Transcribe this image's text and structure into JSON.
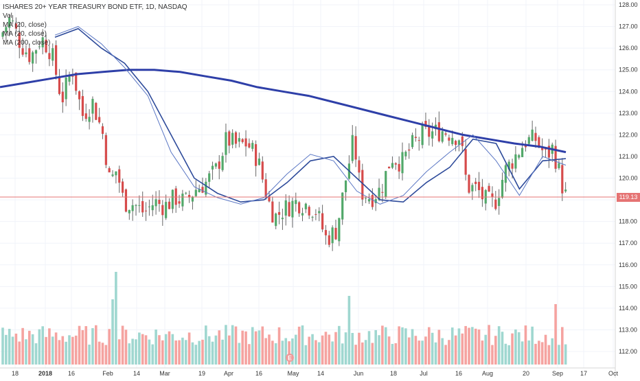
{
  "legend": {
    "symbol_line": "ISHARES 20+ YEAR TREASURY BOND ETF, 1D, NASDAQ",
    "volume_line": "Vol",
    "ma1_line": "MA (20, close)",
    "ma2_line": "MA (20, close)",
    "ma3_line": "MA (200, close)"
  },
  "last_price_label": "119.13",
  "earnings_marker": "E",
  "colors": {
    "up": "#26a69a",
    "down": "#ef5350",
    "up_body": "#52a86a",
    "down_body": "#d64b4b",
    "vol_up": "#9fd7d0",
    "vol_down": "#f5a3a0",
    "ma200": "#2e3fa8",
    "ma_fast": "#5b77c4",
    "ma_slow": "#2d4a9a",
    "price_line": "#e57373",
    "axis_text": "#333333",
    "grid": "#f0f3fa"
  },
  "chart_data": {
    "type": "candlestick",
    "title": "ISHARES 20+ YEAR TREASURY BOND ETF, 1D, NASDAQ",
    "y_ticks": [
      "128.00",
      "127.00",
      "126.00",
      "125.00",
      "124.00",
      "123.00",
      "122.00",
      "121.00",
      "120.00",
      "119.00",
      "118.00",
      "117.00",
      "116.00",
      "115.00",
      "114.00",
      "113.00",
      "112.00"
    ],
    "ylim": [
      111.4,
      128.2
    ],
    "x_ticks": [
      "18",
      "2018",
      "16",
      "Feb",
      "14",
      "Mar",
      "19",
      "Apr",
      "16",
      "May",
      "14",
      "Jun",
      "18",
      "Jul",
      "16",
      "Aug",
      "20",
      "Sep",
      "17",
      "Oct"
    ],
    "last_price": 119.13,
    "series": [
      {
        "name": "MA (200, close)",
        "values": [
          124.2,
          124.4,
          124.6,
          124.8,
          124.9,
          125.0,
          125.0,
          124.9,
          124.7,
          124.5,
          124.2,
          124.0,
          123.8,
          123.5,
          123.2,
          122.9,
          122.6,
          122.3,
          122.0,
          121.8,
          121.6,
          121.45,
          121.2
        ]
      },
      {
        "name": "MA (20, close)",
        "values": [
          126.5,
          126.9,
          126.0,
          125.3,
          124.0,
          122.0,
          120.0,
          119.3,
          118.9,
          119.0,
          119.8,
          120.8,
          121.0,
          120.0,
          119.0,
          118.9,
          119.8,
          120.5,
          121.8,
          121.6,
          119.5,
          120.8,
          120.9
        ]
      },
      {
        "name": "MA (20, close)",
        "values": [
          126.6,
          127.0,
          126.2,
          125.1,
          123.8,
          121.2,
          119.6,
          119.1,
          118.8,
          119.1,
          120.2,
          121.1,
          120.8,
          119.4,
          118.8,
          119.2,
          120.3,
          121.2,
          122.0,
          120.8,
          119.2,
          121.0,
          120.6
        ]
      }
    ],
    "volume_scale": "relative"
  }
}
